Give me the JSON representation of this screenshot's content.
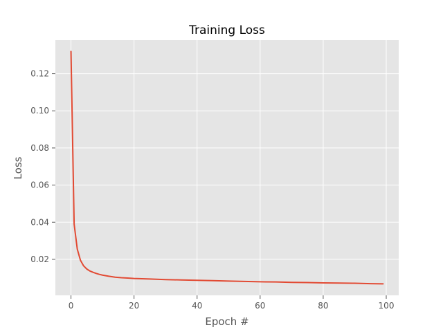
{
  "chart_data": {
    "type": "line",
    "title": "Training Loss",
    "xlabel": "Epoch #",
    "ylabel": "Loss",
    "xlim": [
      -4.95,
      103.95
    ],
    "ylim": [
      0.0006,
      0.1381
    ],
    "xticks": [
      0,
      20,
      40,
      60,
      80,
      100
    ],
    "xtick_labels": [
      "0",
      "20",
      "40",
      "60",
      "80",
      "100"
    ],
    "yticks": [
      0.02,
      0.04,
      0.06,
      0.08,
      0.1,
      0.12
    ],
    "ytick_labels": [
      "0.02",
      "0.04",
      "0.06",
      "0.08",
      "0.10",
      "0.12"
    ],
    "grid": true,
    "legend": "none",
    "colors": {
      "line": "#e24a33",
      "plot_background": "#e5e5e5",
      "grid": "#ffffff",
      "tick": "#555555"
    },
    "series": [
      {
        "x": [
          0,
          1,
          2,
          3,
          4,
          5,
          6,
          7,
          8,
          9,
          10,
          12,
          14,
          16,
          18,
          20,
          25,
          30,
          35,
          40,
          45,
          50,
          55,
          60,
          65,
          70,
          75,
          80,
          85,
          90,
          95,
          99
        ],
        "values": [
          0.132,
          0.039,
          0.0255,
          0.0195,
          0.0165,
          0.0148,
          0.0137,
          0.013,
          0.0124,
          0.0119,
          0.0115,
          0.0109,
          0.0104,
          0.0101,
          0.0099,
          0.0097,
          0.0094,
          0.0091,
          0.0089,
          0.0087,
          0.0085,
          0.0083,
          0.0081,
          0.0079,
          0.0078,
          0.0076,
          0.0075,
          0.0073,
          0.0072,
          0.0071,
          0.0069,
          0.0068
        ]
      }
    ]
  }
}
